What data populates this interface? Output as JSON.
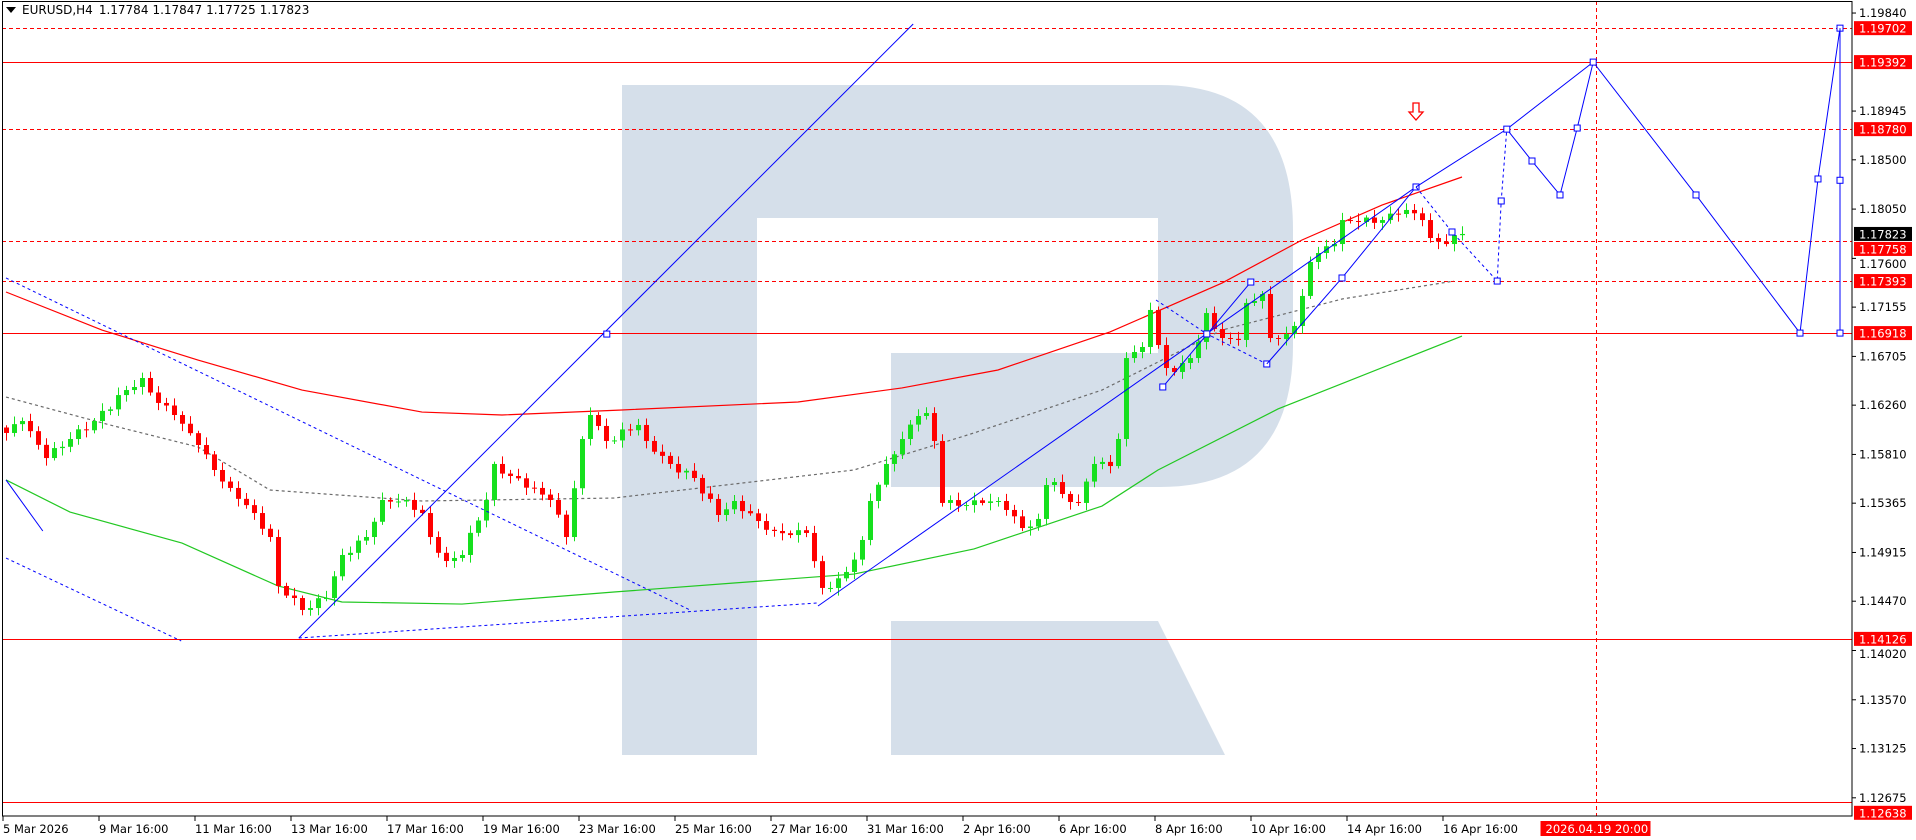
{
  "header": {
    "symbol": "EURUSD,H4",
    "open": "1.17784",
    "high": "1.17847",
    "low": "1.17725",
    "close": "1.17823"
  },
  "colors": {
    "bull": "#16e01e",
    "bear": "#ff0000",
    "watermark": "#d5dfea",
    "levels": "#ff0000",
    "drawings": "#0000ff",
    "ma_red": "#ff0000",
    "ma_green": "#22c822",
    "ma_gray": "#6a6a6a"
  },
  "chart_data": {
    "type": "candlestick",
    "symbol": "EURUSD",
    "timeframe": "H4",
    "ylim": [
      1.1257,
      1.1996
    ],
    "y_ticks": [
      "1.19840",
      "1.18945",
      "1.18500",
      "1.18050",
      "1.17600",
      "1.17155",
      "1.16705",
      "1.16260",
      "1.15810",
      "1.15365",
      "1.14915",
      "1.14470",
      "1.14020",
      "1.13570",
      "1.13125",
      "1.12675"
    ],
    "x_ticks": [
      {
        "bar": 0,
        "label": "5 Mar 2026"
      },
      {
        "bar": 12,
        "label": "9 Mar 16:00"
      },
      {
        "bar": 24,
        "label": "11 Mar 16:00"
      },
      {
        "bar": 36,
        "label": "13 Mar 16:00"
      },
      {
        "bar": 48,
        "label": "17 Mar 16:00"
      },
      {
        "bar": 60,
        "label": "19 Mar 16:00"
      },
      {
        "bar": 72,
        "label": "23 Mar 16:00"
      },
      {
        "bar": 84,
        "label": "25 Mar 16:00"
      },
      {
        "bar": 96,
        "label": "27 Mar 16:00"
      },
      {
        "bar": 108,
        "label": "31 Mar 16:00"
      },
      {
        "bar": 120,
        "label": "2 Apr 16:00"
      },
      {
        "bar": 132,
        "label": "6 Apr 16:00"
      },
      {
        "bar": 144,
        "label": "8 Apr 16:00"
      },
      {
        "bar": 156,
        "label": "10 Apr 16:00"
      },
      {
        "bar": 168,
        "label": "14 Apr 16:00"
      },
      {
        "bar": 180,
        "label": "16 Apr 16:00"
      }
    ],
    "bar_count": 183,
    "close_path": [
      [
        0,
        1.16006
      ],
      [
        2,
        1.16115
      ],
      [
        5,
        1.15777
      ],
      [
        8,
        1.15951
      ],
      [
        11,
        1.16115
      ],
      [
        15,
        1.16398
      ],
      [
        17,
        1.16508
      ],
      [
        19,
        1.1628
      ],
      [
        21,
        1.1617
      ],
      [
        24,
        1.15896
      ],
      [
        26,
        1.15668
      ],
      [
        28,
        1.15504
      ],
      [
        31,
        1.15275
      ],
      [
        33,
        1.15056
      ],
      [
        34,
        1.14609
      ],
      [
        36,
        1.14499
      ],
      [
        37,
        1.1439
      ],
      [
        40,
        1.14499
      ],
      [
        42,
        1.14892
      ],
      [
        45,
        1.15056
      ],
      [
        47,
        1.15394
      ],
      [
        50,
        1.15394
      ],
      [
        52,
        1.15275
      ],
      [
        53,
        1.15056
      ],
      [
        55,
        1.14837
      ],
      [
        57,
        1.14892
      ],
      [
        60,
        1.15394
      ],
      [
        61,
        1.15723
      ],
      [
        63,
        1.15613
      ],
      [
        66,
        1.15504
      ],
      [
        68,
        1.15394
      ],
      [
        70,
        1.15056
      ],
      [
        72,
        1.15951
      ],
      [
        73,
        1.1617
      ],
      [
        75,
        1.15933
      ],
      [
        79,
        1.16079
      ],
      [
        80,
        1.15933
      ],
      [
        83,
        1.15723
      ],
      [
        86,
        1.15595
      ],
      [
        89,
        1.15257
      ],
      [
        91,
        1.15385
      ],
      [
        94,
        1.15202
      ],
      [
        96,
        1.15111
      ],
      [
        98,
        1.15074
      ],
      [
        100,
        1.15093
      ],
      [
        102,
        1.14591
      ],
      [
        103,
        1.14591
      ],
      [
        105,
        1.14737
      ],
      [
        107,
        1.15029
      ],
      [
        108,
        1.15385
      ],
      [
        110,
        1.15723
      ],
      [
        112,
        1.15951
      ],
      [
        114,
        1.16161
      ],
      [
        115,
        1.16188
      ],
      [
        116,
        1.15933
      ],
      [
        117,
        1.15367
      ],
      [
        120,
        1.15348
      ],
      [
        122,
        1.15367
      ],
      [
        124,
        1.15385
      ],
      [
        125,
        1.15303
      ],
      [
        127,
        1.15138
      ],
      [
        129,
        1.15221
      ],
      [
        130,
        1.15531
      ],
      [
        131,
        1.15558
      ],
      [
        132,
        1.15449
      ],
      [
        134,
        1.15367
      ],
      [
        136,
        1.15723
      ],
      [
        138,
        1.15704
      ],
      [
        139,
        1.15951
      ],
      [
        140,
        1.1669
      ],
      [
        141,
        1.16745
      ],
      [
        142,
        1.16791
      ],
      [
        143,
        1.17129
      ],
      [
        144,
        1.16809
      ],
      [
        145,
        1.16599
      ],
      [
        146,
        1.16563
      ],
      [
        147,
        1.16645
      ],
      [
        148,
        1.1669
      ],
      [
        149,
        1.16837
      ],
      [
        150,
        1.17101
      ],
      [
        151,
        1.16955
      ],
      [
        152,
        1.16873
      ],
      [
        154,
        1.16855
      ],
      [
        155,
        1.17193
      ],
      [
        156,
        1.17211
      ],
      [
        157,
        1.17275
      ],
      [
        158,
        1.16873
      ],
      [
        159,
        1.16864
      ],
      [
        161,
        1.16983
      ],
      [
        162,
        1.17257
      ],
      [
        163,
        1.17567
      ],
      [
        164,
        1.17649
      ],
      [
        166,
        1.17731
      ],
      [
        167,
        1.1795
      ],
      [
        169,
        1.17932
      ],
      [
        172,
        1.1795
      ],
      [
        174,
        1.18005
      ],
      [
        175,
        1.18042
      ],
      [
        177,
        1.1795
      ],
      [
        178,
        1.17786
      ],
      [
        180,
        1.17731
      ],
      [
        182,
        1.17823
      ]
    ],
    "moving_averages": [
      {
        "color_key": "ma_red",
        "style": "solid",
        "points": [
          [
            0,
            1.17293
          ],
          [
            12,
            1.16946
          ],
          [
            24,
            1.16672
          ],
          [
            37,
            1.16398
          ],
          [
            52,
            1.16197
          ],
          [
            62,
            1.1617
          ],
          [
            77,
            1.16216
          ],
          [
            99,
            1.16289
          ],
          [
            112,
            1.16417
          ],
          [
            124,
            1.16581
          ],
          [
            138,
            1.16928
          ],
          [
            152,
            1.17375
          ],
          [
            162,
            1.17768
          ],
          [
            172,
            1.18087
          ],
          [
            182,
            1.18343
          ]
        ]
      },
      {
        "color_key": "ma_green",
        "style": "solid",
        "points": [
          [
            0,
            1.15577
          ],
          [
            8,
            1.15284
          ],
          [
            22,
            1.15001
          ],
          [
            34,
            1.14609
          ],
          [
            42,
            1.14463
          ],
          [
            57,
            1.14444
          ],
          [
            76,
            1.14554
          ],
          [
            91,
            1.14636
          ],
          [
            106,
            1.14718
          ],
          [
            121,
            1.14947
          ],
          [
            137,
            1.15339
          ],
          [
            144,
            1.15668
          ],
          [
            159,
            1.16225
          ],
          [
            182,
            1.16891
          ]
        ]
      },
      {
        "color_key": "ma_gray",
        "style": "dashed",
        "points": [
          [
            0,
            1.16334
          ],
          [
            13,
            1.16079
          ],
          [
            24,
            1.15878
          ],
          [
            33,
            1.15485
          ],
          [
            52,
            1.15385
          ],
          [
            76,
            1.15412
          ],
          [
            106,
            1.15668
          ],
          [
            121,
            1.16006
          ],
          [
            137,
            1.16398
          ],
          [
            152,
            1.16946
          ],
          [
            167,
            1.17229
          ],
          [
            181,
            1.17393
          ]
        ]
      }
    ],
    "levels": [
      {
        "price": 1.19702,
        "label": "1.19702",
        "style": "dashed"
      },
      {
        "price": 1.19392,
        "label": "1.19392",
        "style": "solid"
      },
      {
        "price": 1.1878,
        "label": "1.18780",
        "style": "dashed"
      },
      {
        "price": 1.17758,
        "label": "1.17758",
        "style": "dashed"
      },
      {
        "price": 1.17393,
        "label": "1.17393",
        "style": "dashed"
      },
      {
        "price": 1.16918,
        "label": "1.16918",
        "style": "solid"
      },
      {
        "price": 1.14126,
        "label": "1.14126",
        "style": "solid"
      },
      {
        "price": 1.12638,
        "label": "1.12638",
        "style": "solid"
      }
    ],
    "current_price": {
      "price": 1.17823,
      "label": "1.17823"
    },
    "time_marker": {
      "bar": 198.75,
      "label": "2026.04.19 20:00"
    },
    "down_arrow": {
      "bar": 176.25,
      "price": 1.18927
    },
    "drawings": [
      {
        "style": "solid",
        "points": [
          [
            36.6,
            1.14134
          ],
          [
            113.4,
            1.1974
          ]
        ],
        "markers": [
          [
            75.1,
            1.16909
          ]
        ]
      },
      {
        "style": "dotted",
        "points": [
          [
            0,
            1.17421
          ],
          [
            85.5,
            1.1439
          ]
        ]
      },
      {
        "style": "dotted",
        "points": [
          [
            0,
            1.14864
          ],
          [
            21.9,
            1.14107
          ]
        ]
      },
      {
        "style": "dotted",
        "points": [
          [
            36.6,
            1.14134
          ],
          [
            101.5,
            1.14454
          ]
        ]
      },
      {
        "style": "solid",
        "points": [
          [
            0,
            1.15577
          ],
          [
            4.6,
            1.15111
          ]
        ]
      },
      {
        "style": "solid",
        "points": [
          [
            101.5,
            1.14426
          ],
          [
            176.25,
            1.18252
          ]
        ]
      },
      {
        "style": "solid",
        "points": [
          [
            144.6,
            1.16426
          ],
          [
            155.6,
            1.17384
          ]
        ],
        "markers": [
          [
            144.6,
            1.16426
          ],
          [
            155.6,
            1.17384
          ]
        ]
      },
      {
        "style": "dotted",
        "points": [
          [
            143.75,
            1.1722
          ],
          [
            150.1,
            1.1691
          ],
          [
            157.6,
            1.16636
          ]
        ],
        "markers": [
          [
            150.1,
            1.1691
          ],
          [
            157.6,
            1.16636
          ]
        ]
      },
      {
        "style": "solid",
        "points": [
          [
            157.6,
            1.16636
          ],
          [
            167,
            1.17421
          ],
          [
            176.25,
            1.18252
          ]
        ],
        "markers": [
          [
            167,
            1.17421
          ],
          [
            176.25,
            1.18252
          ]
        ]
      },
      {
        "style": "dotted",
        "points": [
          [
            176.25,
            1.18252
          ],
          [
            180.75,
            1.17841
          ],
          [
            186.4,
            1.17393
          ],
          [
            186.9,
            1.18124
          ],
          [
            187.6,
            1.1878
          ]
        ],
        "markers": [
          [
            180.75,
            1.17841
          ],
          [
            186.4,
            1.17393
          ],
          [
            186.9,
            1.18124
          ]
        ]
      },
      {
        "style": "solid",
        "points": [
          [
            176.25,
            1.18252
          ],
          [
            187.6,
            1.1878
          ],
          [
            198.4,
            1.19392
          ]
        ]
      },
      {
        "style": "solid",
        "points": [
          [
            187.6,
            1.1878
          ],
          [
            190.75,
            1.18489
          ],
          [
            194.25,
            1.18179
          ],
          [
            196.4,
            1.1879
          ],
          [
            198.4,
            1.19392
          ],
          [
            211.25,
            1.18179
          ],
          [
            224.25,
            1.16918
          ],
          [
            226.5,
            1.18325
          ],
          [
            229.25,
            1.19702
          ]
        ],
        "markers": [
          [
            187.6,
            1.1878
          ],
          [
            190.75,
            1.18489
          ],
          [
            194.25,
            1.18179
          ],
          [
            196.4,
            1.1879
          ],
          [
            198.4,
            1.19392
          ],
          [
            211.25,
            1.18179
          ],
          [
            224.25,
            1.16918
          ],
          [
            226.5,
            1.18325
          ],
          [
            229.25,
            1.19702
          ]
        ]
      },
      {
        "style": "solid",
        "points": [
          [
            229.25,
            1.19702
          ],
          [
            229.25,
            1.16918
          ]
        ],
        "markers": [
          [
            229.25,
            1.18313
          ],
          [
            229.25,
            1.16918
          ]
        ]
      }
    ]
  }
}
